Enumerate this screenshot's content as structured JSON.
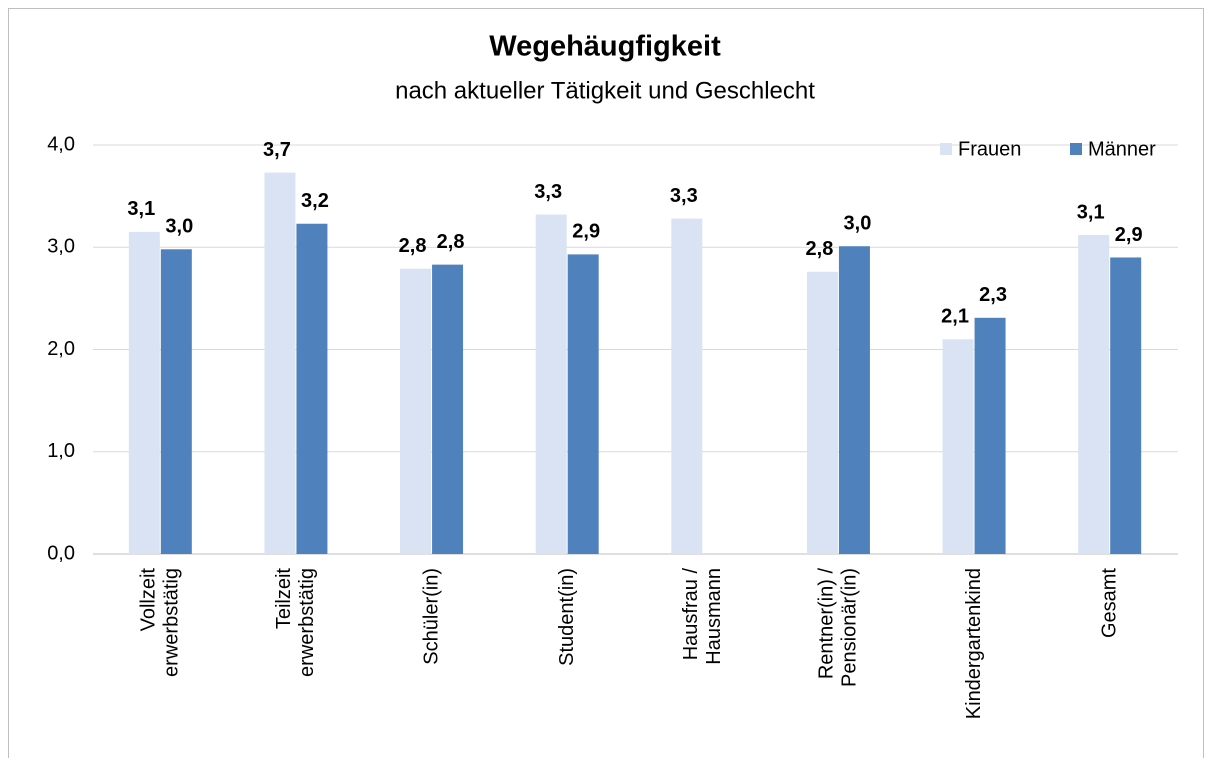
{
  "chart_data": {
    "type": "bar",
    "title": "Wegehäugfigkeit",
    "subtitle": "nach aktueller Tätigkeit und Geschlecht",
    "categories": [
      [
        "Vollzeit",
        "erwerbstätig"
      ],
      [
        "Teilzeit",
        "erwerbstätig"
      ],
      [
        "Schüler(in)"
      ],
      [
        "Student(in)"
      ],
      [
        "Hausfrau /",
        "Hausmann"
      ],
      [
        "Rentner(in) /",
        "Pensionär(in)"
      ],
      [
        "Kindergartenkind"
      ],
      [
        "Gesamt"
      ]
    ],
    "series": [
      {
        "name": "Frauen",
        "color": "#dae3f3",
        "values": [
          3.15,
          3.73,
          2.79,
          3.32,
          3.28,
          2.76,
          2.1,
          3.12
        ],
        "value_labels": [
          "3,1",
          "3,7",
          "2,8",
          "3,3",
          "3,3",
          "2,8",
          "2,1",
          "3,1"
        ]
      },
      {
        "name": "Männer",
        "color": "#4f81bd",
        "values": [
          2.98,
          3.23,
          2.83,
          2.93,
          null,
          3.01,
          2.31,
          2.9
        ],
        "value_labels": [
          "3,0",
          "3,2",
          "2,8",
          "2,9",
          null,
          "3,0",
          "2,3",
          "2,9"
        ]
      }
    ],
    "ylim": [
      0,
      4
    ],
    "yticks": [
      {
        "value": 0,
        "label": "0,0"
      },
      {
        "value": 1,
        "label": "1,0"
      },
      {
        "value": 2,
        "label": "2,0"
      },
      {
        "value": 3,
        "label": "3,0"
      },
      {
        "value": 4,
        "label": "4,0"
      }
    ],
    "grid": true,
    "legend": "top-right"
  }
}
